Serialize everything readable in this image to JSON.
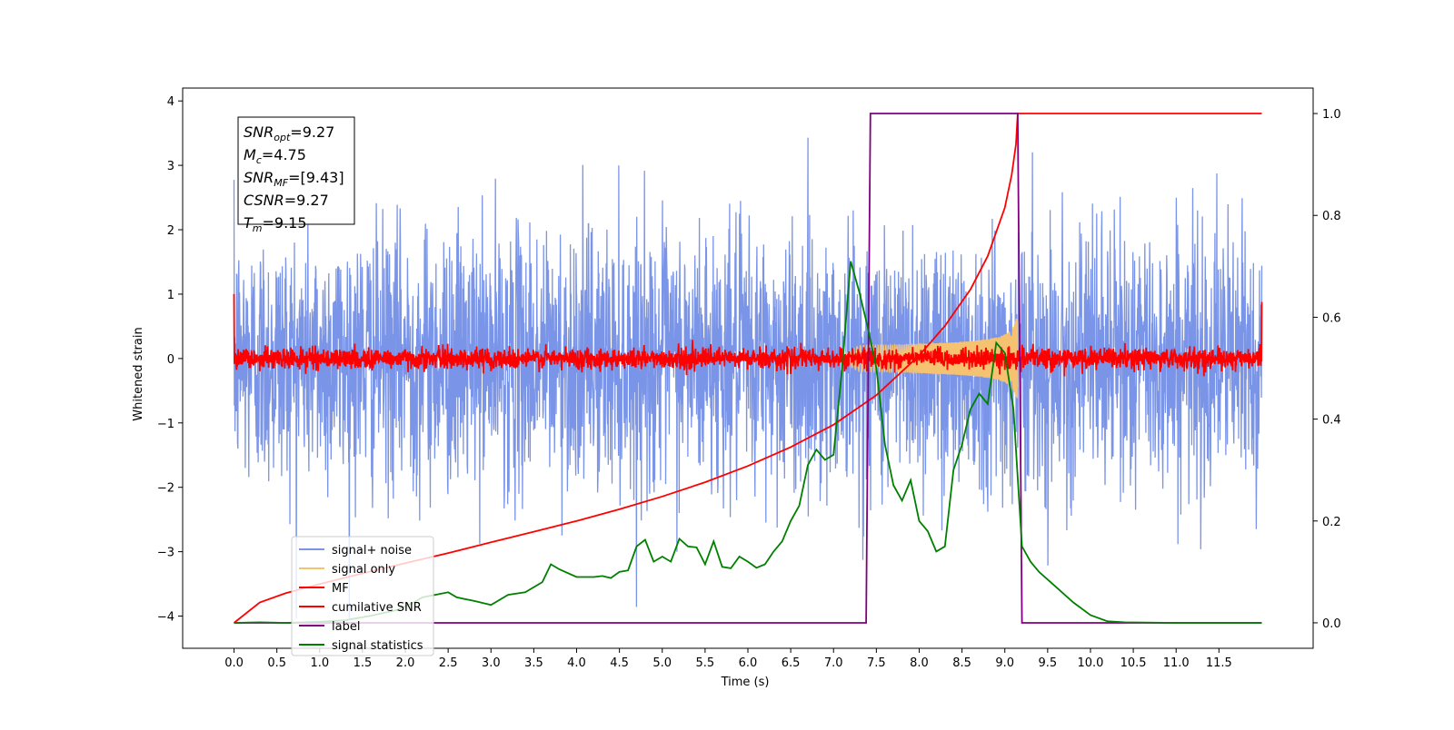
{
  "chart_data": {
    "type": "line",
    "title": "",
    "xlabel": "Time (s)",
    "ylabel": "Whitened strain",
    "y2label": "",
    "xlim": [
      -0.6,
      12.6
    ],
    "ylim": [
      -4.5,
      4.2
    ],
    "y2lim": [
      -0.05,
      1.05
    ],
    "xticks": [
      0.0,
      0.5,
      1.0,
      1.5,
      2.0,
      2.5,
      3.0,
      3.5,
      4.0,
      4.5,
      5.0,
      5.5,
      6.0,
      6.5,
      7.0,
      7.5,
      8.0,
      8.5,
      9.0,
      9.5,
      10.0,
      10.5,
      11.0,
      11.5
    ],
    "xtick_labels": [
      "0.0",
      "0.5",
      "1.0",
      "1.5",
      "2.0",
      "2.5",
      "3.0",
      "3.5",
      "4.0",
      "4.5",
      "5.0",
      "5.5",
      "6.0",
      "6.5",
      "7.0",
      "7.5",
      "8.0",
      "8.5",
      "9.0",
      "9.5",
      "10.0",
      "10.5",
      "11.0",
      "11.5"
    ],
    "yticks": [
      -4,
      -3,
      -2,
      -1,
      0,
      1,
      2,
      3,
      4
    ],
    "ytick_labels": [
      "−4",
      "−3",
      "−2",
      "−1",
      "0",
      "1",
      "2",
      "3",
      "4"
    ],
    "y2ticks": [
      0.0,
      0.2,
      0.4,
      0.6,
      0.8,
      1.0
    ],
    "y2tick_labels": [
      "0.0",
      "0.2",
      "0.4",
      "0.6",
      "0.8",
      "1.0"
    ],
    "grid": false,
    "legend_position": "lower-left",
    "annotation": {
      "lines": [
        {
          "sym": "SNR",
          "sub": "opt",
          "value": "=9.27"
        },
        {
          "sym": "M",
          "sub": "c",
          "value": "=4.75"
        },
        {
          "sym": "SNR",
          "sub": "MF",
          "value": "=[9.43]"
        },
        {
          "sym": "CSNR",
          "sub": "",
          "value": "=9.27"
        },
        {
          "sym": "T",
          "sub": "m",
          "value": "=9.15"
        }
      ]
    },
    "series": [
      {
        "name": "signal+ noise",
        "color": "#7a94e8",
        "axis": "left",
        "kind": "noise",
        "t_range": [
          0.0,
          12.0
        ],
        "amplitude_sd": 1.0,
        "y_range": [
          -4.05,
          3.85
        ]
      },
      {
        "name": "signal only",
        "color": "#f5c272",
        "axis": "left",
        "kind": "chirp",
        "t_range": [
          7.0,
          9.15
        ],
        "peak_amplitude": 0.62
      },
      {
        "name": "MF",
        "color": "#ff0000",
        "axis": "left",
        "kind": "noise",
        "t_range": [
          0.0,
          12.0
        ],
        "amplitude_sd": 0.08,
        "end_values": [
          1.0,
          0.88
        ]
      },
      {
        "name": "cumilative SNR",
        "color": "#ff0000",
        "axis": "right",
        "kind": "curve",
        "x": [
          0.0,
          0.3,
          0.6,
          1.0,
          1.5,
          2.0,
          2.5,
          3.0,
          3.5,
          4.0,
          4.5,
          5.0,
          5.5,
          6.0,
          6.5,
          7.0,
          7.5,
          8.0,
          8.3,
          8.6,
          8.8,
          9.0,
          9.08,
          9.13,
          9.15,
          12.0
        ],
        "y": [
          0.0,
          0.04,
          0.058,
          0.076,
          0.097,
          0.117,
          0.137,
          0.158,
          0.179,
          0.2,
          0.223,
          0.248,
          0.276,
          0.308,
          0.345,
          0.389,
          0.447,
          0.525,
          0.583,
          0.655,
          0.72,
          0.815,
          0.88,
          0.94,
          1.0,
          1.0
        ]
      },
      {
        "name": "label",
        "color": "#800080",
        "axis": "right",
        "kind": "curve",
        "x": [
          0.0,
          7.38,
          7.43,
          9.15,
          9.2,
          12.0
        ],
        "y": [
          0.0,
          0.0,
          1.0,
          1.0,
          0.0,
          0.0
        ]
      },
      {
        "name": "signal statistics",
        "color": "#008000",
        "axis": "right",
        "kind": "curve",
        "x": [
          0.0,
          0.3,
          0.6,
          1.0,
          1.3,
          1.6,
          1.9,
          2.1,
          2.2,
          2.35,
          2.5,
          2.6,
          2.8,
          3.0,
          3.2,
          3.4,
          3.6,
          3.7,
          3.8,
          4.0,
          4.2,
          4.3,
          4.4,
          4.5,
          4.6,
          4.7,
          4.8,
          4.9,
          5.0,
          5.1,
          5.2,
          5.3,
          5.4,
          5.5,
          5.6,
          5.7,
          5.8,
          5.9,
          6.0,
          6.1,
          6.2,
          6.3,
          6.4,
          6.5,
          6.6,
          6.7,
          6.8,
          6.9,
          7.0,
          7.1,
          7.2,
          7.3,
          7.4,
          7.5,
          7.6,
          7.7,
          7.8,
          7.9,
          8.0,
          8.1,
          8.2,
          8.3,
          8.4,
          8.5,
          8.6,
          8.7,
          8.8,
          8.9,
          9.0,
          9.1,
          9.2,
          9.3,
          9.4,
          9.6,
          9.8,
          10.0,
          10.2,
          10.4,
          11.0,
          12.0
        ],
        "y": [
          0.0,
          0.001,
          0.0,
          0.002,
          0.005,
          0.014,
          0.025,
          0.04,
          0.05,
          0.055,
          0.06,
          0.05,
          0.043,
          0.035,
          0.055,
          0.06,
          0.08,
          0.115,
          0.105,
          0.09,
          0.09,
          0.092,
          0.088,
          0.1,
          0.103,
          0.15,
          0.163,
          0.12,
          0.13,
          0.12,
          0.165,
          0.15,
          0.148,
          0.115,
          0.16,
          0.11,
          0.107,
          0.13,
          0.12,
          0.108,
          0.115,
          0.14,
          0.16,
          0.2,
          0.23,
          0.31,
          0.34,
          0.32,
          0.33,
          0.5,
          0.71,
          0.65,
          0.58,
          0.5,
          0.35,
          0.27,
          0.24,
          0.28,
          0.2,
          0.18,
          0.14,
          0.15,
          0.3,
          0.35,
          0.42,
          0.45,
          0.43,
          0.55,
          0.53,
          0.42,
          0.15,
          0.12,
          0.1,
          0.07,
          0.04,
          0.015,
          0.003,
          0.001,
          0.0,
          0.0
        ]
      }
    ]
  }
}
